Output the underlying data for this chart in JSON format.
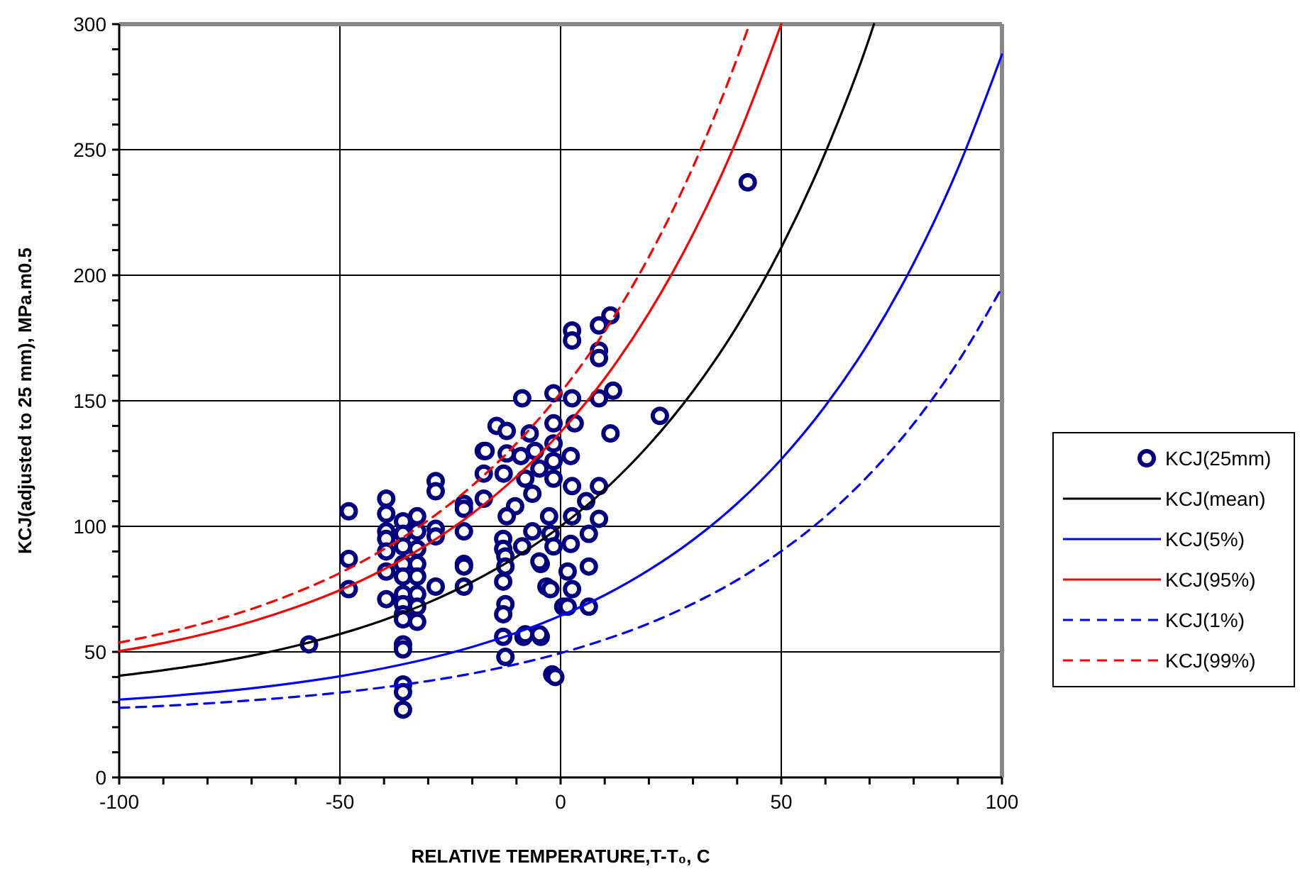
{
  "chart_data": {
    "type": "line",
    "xlabel": "RELATIVE TEMPERATURE,T-T₀,  C",
    "ylabel": "KCJ(adjusted to 25 mm), MPa.m0.5",
    "xlim": [
      -100,
      100
    ],
    "xticks": [
      -100,
      {
        "value": -90,
        "label": null
      },
      {
        "value": -80,
        "label": null
      },
      {
        "value": -70,
        "label": null
      },
      {
        "value": -60,
        "label": null
      },
      -50,
      {
        "value": -40,
        "label": null
      },
      {
        "value": -30,
        "label": null
      },
      {
        "value": -20,
        "label": null
      },
      {
        "value": -10,
        "label": null
      },
      0,
      {
        "value": 10,
        "label": null
      },
      {
        "value": 20,
        "label": null
      },
      {
        "value": 30,
        "label": null
      },
      {
        "value": 40,
        "label": null
      },
      50,
      {
        "value": 60,
        "label": null
      },
      {
        "value": 70,
        "label": null
      },
      {
        "value": 80,
        "label": null
      },
      {
        "value": 90,
        "label": null
      },
      100
    ],
    "ylim": [
      0,
      300
    ],
    "yticks": [
      0,
      {
        "value": 10,
        "label": null
      },
      {
        "value": 20,
        "label": null
      },
      {
        "value": 30,
        "label": null
      },
      {
        "value": 40,
        "label": null
      },
      50,
      {
        "value": 60,
        "label": null
      },
      {
        "value": 70,
        "label": null
      },
      {
        "value": 80,
        "label": null
      },
      {
        "value": 90,
        "label": null
      },
      100,
      {
        "value": 110,
        "label": null
      },
      {
        "value": 120,
        "label": null
      },
      {
        "value": 130,
        "label": null
      },
      {
        "value": 140,
        "label": null
      },
      150,
      {
        "value": 160,
        "label": null
      },
      {
        "value": 170,
        "label": null
      },
      {
        "value": 180,
        "label": null
      },
      {
        "value": 190,
        "label": null
      },
      200,
      {
        "value": 210,
        "label": null
      },
      {
        "value": 220,
        "label": null
      },
      {
        "value": 230,
        "label": null
      },
      {
        "value": 240,
        "label": null
      },
      250,
      {
        "value": 260,
        "label": null
      },
      {
        "value": 270,
        "label": null
      },
      {
        "value": 280,
        "label": null
      },
      {
        "value": 290,
        "label": null
      },
      300
    ],
    "grid": true,
    "legend": "right",
    "series": [
      {
        "name": "KCJ(25mm)",
        "type": "scatter",
        "marker": "circle",
        "color": "#000080",
        "x": [
          -57,
          -48,
          -48,
          -48,
          -39.5,
          -39.5,
          -39.5,
          -39.5,
          -39.5,
          -39.5,
          -39.5,
          -35.7,
          -35.7,
          -35.7,
          -35.7,
          -35.7,
          -35.7,
          -35.7,
          -35.7,
          -35.7,
          -35.7,
          -35.7,
          -35.7,
          -35.7,
          -35.7,
          -32.5,
          -32.5,
          -32.5,
          -32.5,
          -32.5,
          -32.5,
          -32.5,
          -32.5,
          -28.3,
          -28.3,
          -28.3,
          -28.3,
          -28.3,
          -21.9,
          -21.9,
          -21.9,
          -21.9,
          -21.9,
          -21.9,
          -17.4,
          -17.4,
          -17.4,
          -13,
          -13,
          -12.5,
          -12.5,
          -13,
          -12.5,
          -13,
          -12.5,
          -13,
          -8.4,
          -4.5,
          -4.5,
          -1.9,
          -1.2,
          0.6,
          -8.7,
          -1.6,
          -1.6,
          -14.5,
          -12.2,
          -7,
          -17,
          -12.2,
          -9,
          -5.8,
          -1.6,
          -1.6,
          -12.9,
          -8,
          -4.8,
          -1.6,
          -6.4,
          -10.3,
          -12.2,
          -2.6,
          -6.4,
          -2.3,
          -1.6,
          -8.7,
          -3.2,
          42.4,
          2.6,
          2.6,
          8.7,
          11.3,
          8.7,
          8.7,
          11.9,
          8.7,
          2.6,
          22.5,
          11.3,
          3.2,
          2.3,
          2.6,
          8.7,
          5.8,
          2.6,
          8.7,
          6.4,
          2.3,
          -4.8,
          1.6,
          6.4,
          -2.3,
          2.6,
          1.6,
          6.4,
          -8,
          -4.8
        ],
        "values": [
          53,
          106,
          87,
          75,
          111,
          105,
          98,
          95,
          90,
          82,
          71,
          102,
          97,
          92,
          85,
          80,
          73,
          69,
          65,
          63,
          53,
          51,
          37,
          34,
          27,
          104,
          98,
          91,
          85,
          80,
          73,
          68,
          62,
          118,
          114,
          99,
          96,
          76,
          109,
          107,
          98,
          85,
          84,
          76,
          130,
          121,
          111,
          95,
          91,
          88,
          84,
          78,
          69,
          65,
          48,
          56,
          56,
          85,
          56,
          41,
          40,
          68,
          151,
          153,
          141,
          140,
          138,
          137,
          130,
          129,
          128,
          130,
          133,
          126,
          121,
          119,
          123,
          119,
          113,
          108,
          104,
          104,
          98,
          97,
          92,
          92,
          76,
          237,
          178,
          174,
          180,
          184,
          170,
          167,
          154,
          151,
          151,
          144,
          137,
          141,
          128,
          116,
          116,
          110,
          104,
          103,
          97,
          93,
          86,
          82,
          84,
          75,
          75,
          68,
          68,
          57,
          57
        ]
      },
      {
        "name": "KCJ(mean)",
        "line_style": "solid",
        "color": "#000000",
        "x": [
          -100,
          -90,
          -80,
          -70,
          -60,
          -50,
          -40,
          -30,
          -20,
          -10,
          0,
          10,
          20,
          30,
          40,
          50,
          60,
          70,
          71
        ],
        "values": [
          40.5,
          42.7,
          45.3,
          48.5,
          52.4,
          57.1,
          62.7,
          69.6,
          77.9,
          87.9,
          100,
          114.6,
          132.4,
          153.8,
          179.7,
          211.0,
          248.9,
          294.7,
          300
        ]
      },
      {
        "name": "KCJ(5%)",
        "line_style": "solid",
        "color": "#0000ff",
        "x": [
          -100,
          -90,
          -80,
          -70,
          -60,
          -50,
          -40,
          -30,
          -20,
          -10,
          0,
          10,
          20,
          30,
          40,
          50,
          60,
          70,
          80,
          90,
          100
        ],
        "values": [
          31.0,
          32.2,
          33.7,
          35.5,
          37.7,
          40.3,
          43.5,
          47.3,
          52.0,
          57.6,
          64.4,
          72.6,
          82.6,
          94.6,
          109.1,
          126.7,
          148.0,
          173.7,
          204.8,
          242.4,
          287.9
        ]
      },
      {
        "name": "KCJ(95%)",
        "line_style": "solid",
        "color": "#ff0000",
        "x": [
          -100,
          -90,
          -80,
          -70,
          -60,
          -50,
          -40,
          -30,
          -20,
          -10,
          0,
          10,
          20,
          30,
          40,
          50
        ],
        "values": [
          50.3,
          53.5,
          57.4,
          62.1,
          67.8,
          74.6,
          82.9,
          93.0,
          105.1,
          119.8,
          137.5,
          158.9,
          184.9,
          216.3,
          254.2,
          300
        ]
      },
      {
        "name": "KCJ(1%)",
        "line_style": "dashed",
        "color": "#0000ff",
        "x": [
          -100,
          -90,
          -80,
          -70,
          -60,
          -50,
          -40,
          -30,
          -20,
          -10,
          0,
          10,
          20,
          30,
          40,
          50,
          60,
          70,
          80,
          90,
          100
        ],
        "values": [
          27.7,
          28.5,
          29.5,
          30.7,
          32.1,
          33.8,
          35.9,
          38.4,
          41.4,
          45.1,
          49.5,
          54.9,
          61.3,
          69.2,
          78.6,
          90.1,
          103.9,
          120.7,
          140.9,
          165.4,
          195.1
        ]
      },
      {
        "name": "KCJ(99%)",
        "line_style": "dashed",
        "color": "#ff0000",
        "x": [
          -100,
          -90,
          -80,
          -70,
          -60,
          -50,
          -40,
          -30,
          -20,
          -10,
          0,
          10,
          20,
          30,
          40,
          42.8
        ],
        "values": [
          53.7,
          57.4,
          61.8,
          67.1,
          73.6,
          81.4,
          90.9,
          102.4,
          116.2,
          133.0,
          153.2,
          177.7,
          207.3,
          243.1,
          286.4,
          300
        ]
      }
    ]
  }
}
